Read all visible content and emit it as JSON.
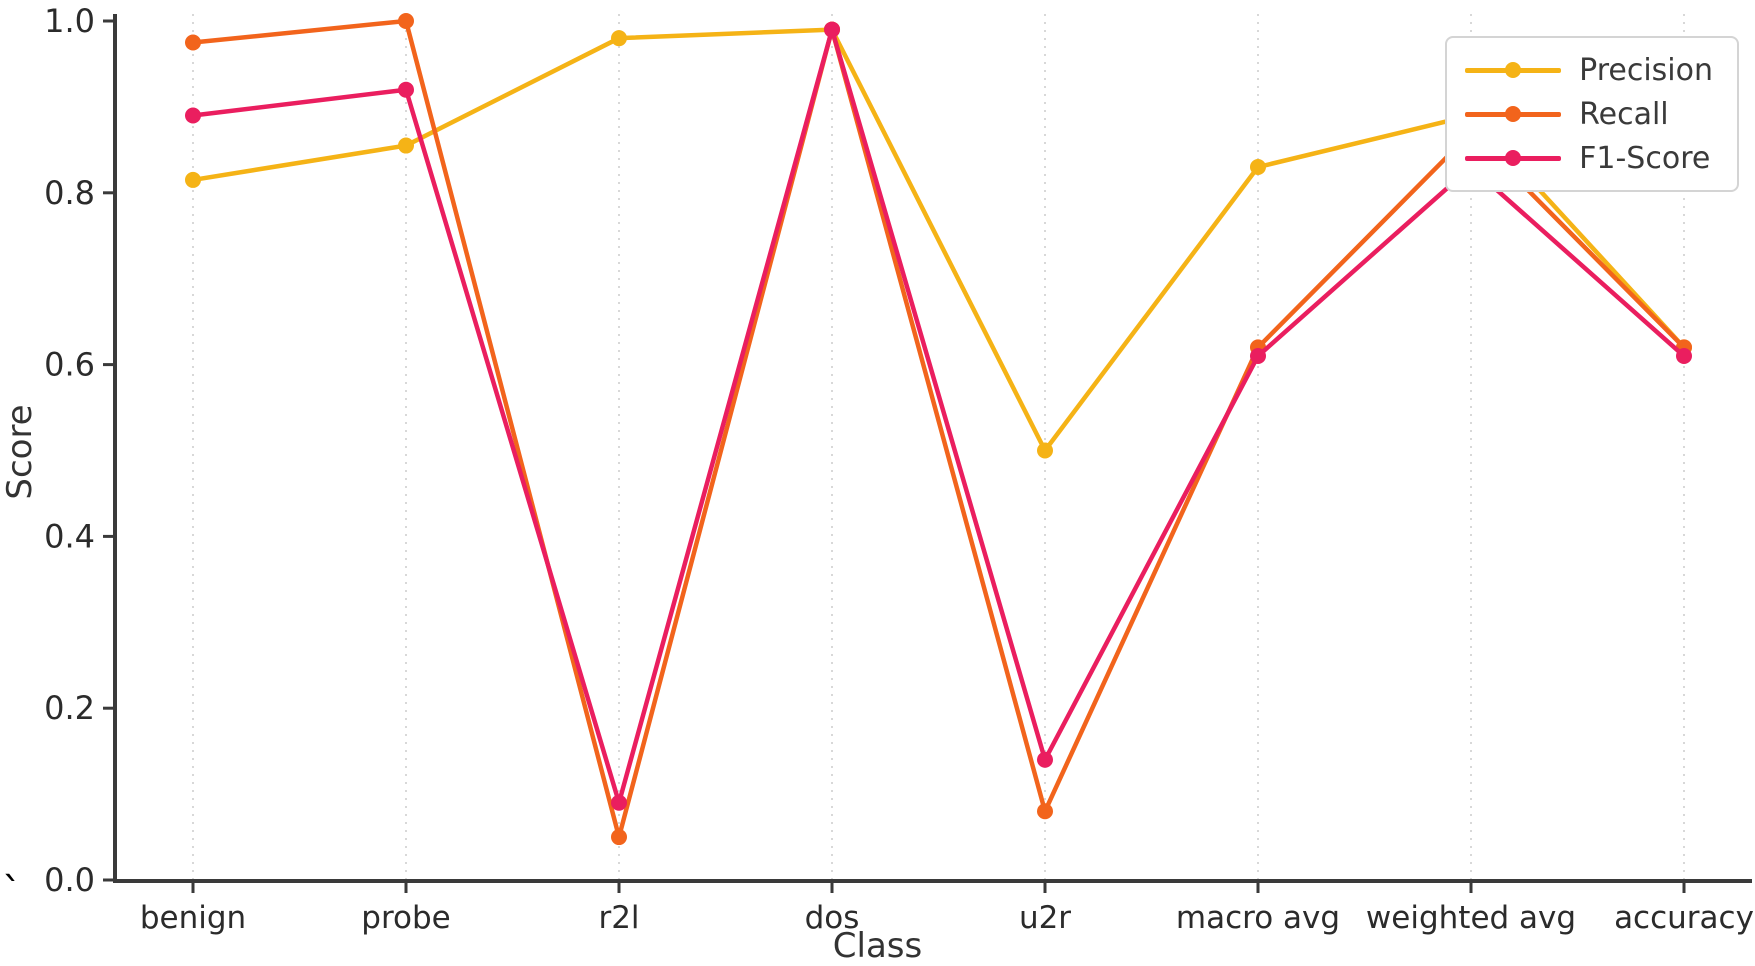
{
  "figure": {
    "stray_char": "`"
  },
  "chart_data": {
    "type": "line",
    "title": "",
    "xlabel": "Class",
    "ylabel": "Score",
    "categories": [
      "benign",
      "probe",
      "r2l",
      "dos",
      "u2r",
      "macro avg",
      "weighted avg",
      "accuracy"
    ],
    "series": [
      {
        "name": "Precision",
        "color": "#F5B316",
        "values": [
          0.815,
          0.855,
          0.98,
          0.99,
          0.5,
          0.83,
          0.89,
          0.62
        ]
      },
      {
        "name": "Recall",
        "color": "#F2641C",
        "values": [
          0.975,
          1.0,
          0.05,
          0.99,
          0.08,
          0.62,
          0.87,
          0.62
        ]
      },
      {
        "name": "F1-Score",
        "color": "#EA1E5F",
        "values": [
          0.89,
          0.92,
          0.09,
          0.99,
          0.14,
          0.61,
          0.83,
          0.61
        ]
      }
    ],
    "ylim": [
      0.0,
      1.0
    ],
    "yticks": [
      0.0,
      0.2,
      0.4,
      0.6,
      0.8,
      1.0
    ],
    "grid": "vertical-dotted",
    "legend_position": "upper right",
    "colors": {
      "spine": "#3a3a3a",
      "grid": "#d2d2d2",
      "tick_text": "#2b2b2b"
    }
  }
}
